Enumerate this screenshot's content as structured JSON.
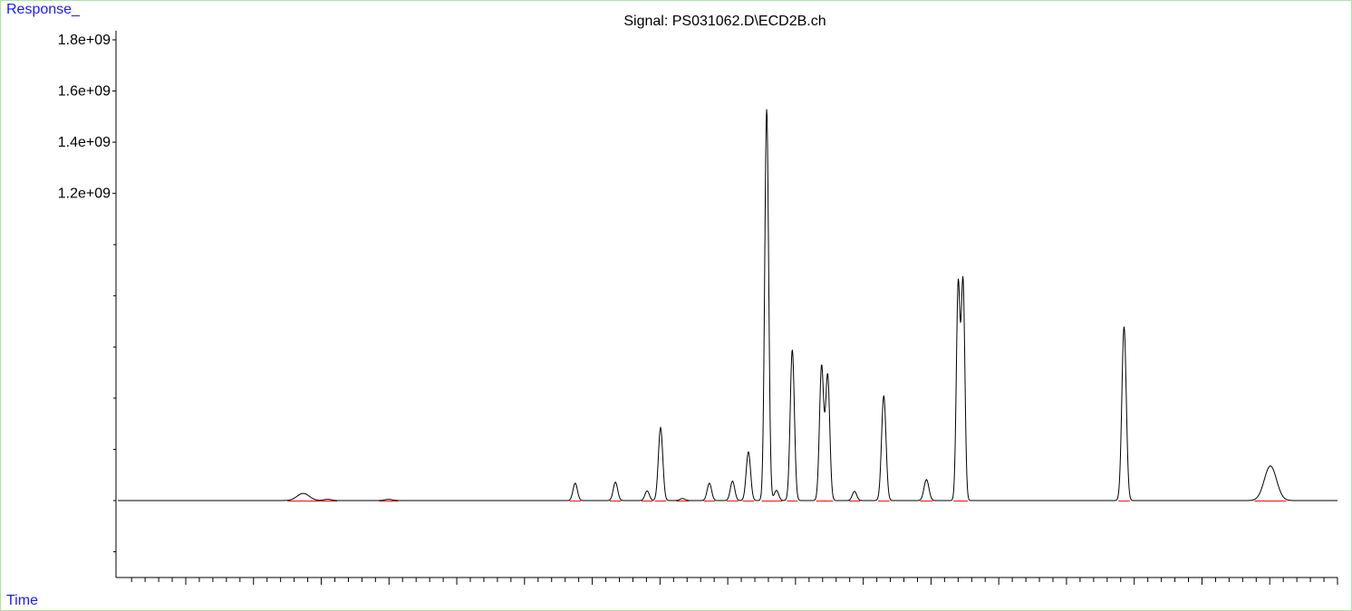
{
  "chart_data": {
    "type": "line",
    "title": "Signal: PS031062.D\\ECD2B.ch",
    "ylabel": "Response_",
    "xlabel": "Time",
    "ylim": [
      -300000000.0,
      1850000000.0
    ],
    "yticks": [
      {
        "value": 1800000000.0,
        "label": "1.8e+09"
      },
      {
        "value": 1600000000.0,
        "label": "1.6e+09"
      },
      {
        "value": 1400000000.0,
        "label": "1.4e+09"
      },
      {
        "value": 1200000000.0,
        "label": "1.2e+09"
      }
    ],
    "ytick_minor": [
      1000000000.0,
      800000000.0,
      600000000.0,
      400000000.0,
      200000000.0,
      0,
      -200000000.0
    ],
    "xlim": [
      0,
      100
    ],
    "x_major_ticks": 18,
    "x_minor_per_major": 5,
    "series": [
      {
        "color": "#000000",
        "baseline": 0,
        "peaks": [
          {
            "x": 15.2,
            "height": 28000000.0,
            "width": 0.5
          },
          {
            "x": 17.2,
            "height": 5000000.0,
            "width": 0.3
          },
          {
            "x": 22.2,
            "height": 5000000.0,
            "width": 0.3
          },
          {
            "x": 37.5,
            "height": 68000000.0,
            "width": 0.18
          },
          {
            "x": 40.8,
            "height": 72000000.0,
            "width": 0.18
          },
          {
            "x": 43.4,
            "height": 38000000.0,
            "width": 0.18
          },
          {
            "x": 44.5,
            "height": 285000000.0,
            "width": 0.18
          },
          {
            "x": 46.3,
            "height": 8000000.0,
            "width": 0.2
          },
          {
            "x": 48.5,
            "height": 68000000.0,
            "width": 0.18
          },
          {
            "x": 50.4,
            "height": 76000000.0,
            "width": 0.18
          },
          {
            "x": 51.7,
            "height": 190000000.0,
            "width": 0.18
          },
          {
            "x": 53.2,
            "height": 1530000000.0,
            "width": 0.16
          },
          {
            "x": 54.0,
            "height": 40000000.0,
            "width": 0.18
          },
          {
            "x": 55.3,
            "height": 590000000.0,
            "width": 0.17
          },
          {
            "x": 57.7,
            "height": 525000000.0,
            "width": 0.17
          },
          {
            "x": 58.2,
            "height": 490000000.0,
            "width": 0.17
          },
          {
            "x": 60.4,
            "height": 36000000.0,
            "width": 0.18
          },
          {
            "x": 62.8,
            "height": 410000000.0,
            "width": 0.18
          },
          {
            "x": 66.3,
            "height": 82000000.0,
            "width": 0.2
          },
          {
            "x": 68.9,
            "height": 840000000.0,
            "width": 0.15
          },
          {
            "x": 69.3,
            "height": 850000000.0,
            "width": 0.15
          },
          {
            "x": 82.5,
            "height": 680000000.0,
            "width": 0.18
          },
          {
            "x": 94.5,
            "height": 135000000.0,
            "width": 0.5
          }
        ]
      }
    ],
    "integration_baseline_color": "#ff2020"
  }
}
